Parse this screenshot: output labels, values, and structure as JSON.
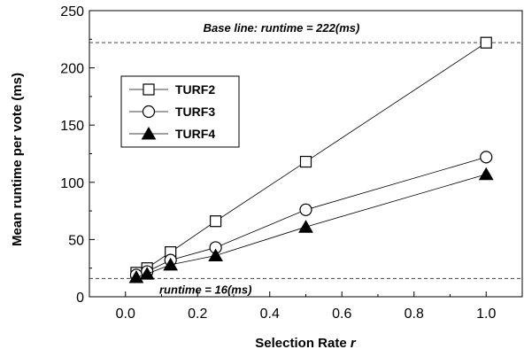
{
  "chart_data": {
    "type": "line",
    "xlabel": "Selection Rate",
    "xlabel_var": "r",
    "ylabel": "Mean runtime per vote (ms)",
    "xlim": [
      -0.1,
      1.1
    ],
    "ylim": [
      0,
      250
    ],
    "xticks": [
      0.0,
      0.2,
      0.4,
      0.6,
      0.8,
      1.0
    ],
    "xtick_labels": [
      "0.0",
      "0.2",
      "0.4",
      "0.6",
      "0.8",
      "1.0"
    ],
    "yticks": [
      0,
      50,
      100,
      150,
      200,
      250
    ],
    "ytick_labels": [
      "0",
      "50",
      "100",
      "150",
      "200",
      "250"
    ],
    "grid": false,
    "legend_position": "upper-left",
    "series": [
      {
        "name": "TURF2",
        "marker": "square-open",
        "x": [
          0.03,
          0.06,
          0.125,
          0.25,
          0.5,
          1.0
        ],
        "y": [
          21,
          25,
          39,
          66,
          118,
          222
        ]
      },
      {
        "name": "TURF3",
        "marker": "circle-open",
        "x": [
          0.03,
          0.06,
          0.125,
          0.25,
          0.5,
          1.0
        ],
        "y": [
          19,
          22,
          32,
          43,
          76,
          122
        ]
      },
      {
        "name": "TURF4",
        "marker": "triangle-filled",
        "x": [
          0.03,
          0.06,
          0.125,
          0.25,
          0.5,
          1.0
        ],
        "y": [
          17,
          20,
          28,
          36,
          61,
          107
        ]
      }
    ],
    "reference_lines": [
      {
        "y": 222,
        "label": "Base line: runtime = 222(ms)"
      },
      {
        "y": 16,
        "label": "runtime = 16(ms)"
      }
    ]
  }
}
